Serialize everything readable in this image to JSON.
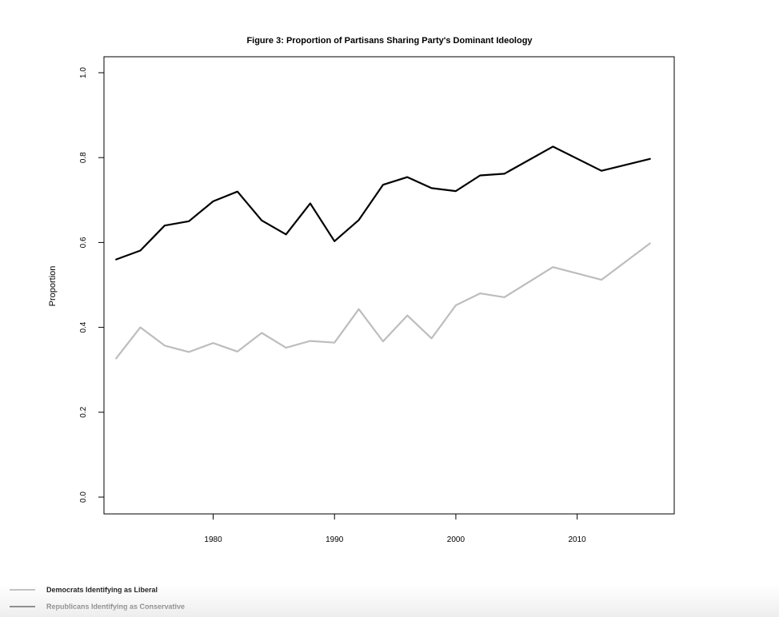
{
  "chart_data": {
    "type": "line",
    "title": "Figure 3: Proportion of Partisans Sharing Party's Dominant Ideology",
    "xlabel": "",
    "ylabel": "Proportion",
    "xlim": [
      1971,
      2018
    ],
    "ylim": [
      0.0,
      1.0
    ],
    "x_ticks": [
      1980,
      1990,
      2000,
      2010
    ],
    "x_tick_labels": [
      "1980",
      "1990",
      "2000",
      "2010"
    ],
    "y_ticks": [
      0.0,
      0.2,
      0.4,
      0.6,
      0.8,
      1.0
    ],
    "y_tick_labels": [
      "0.0",
      "0.2",
      "0.4",
      "0.6",
      "0.8",
      "1.0"
    ],
    "grid": false,
    "legend_position": "bottom-left",
    "x": [
      1972,
      1974,
      1976,
      1978,
      1980,
      1982,
      1984,
      1986,
      1988,
      1990,
      1992,
      1994,
      1996,
      1998,
      2000,
      2002,
      2004,
      2008,
      2012,
      2016
    ],
    "series": [
      {
        "name": "Democrats Identifying as Liberal",
        "color": "#bdbdbd",
        "values": [
          0.327,
          0.4,
          0.357,
          0.342,
          0.363,
          0.343,
          0.387,
          0.352,
          0.368,
          0.364,
          0.443,
          0.367,
          0.428,
          0.374,
          0.452,
          0.48,
          0.471,
          0.542,
          0.512,
          0.598
        ]
      },
      {
        "name": "Republicans Identifying as Conservative",
        "color": "#000000",
        "values": [
          0.56,
          0.581,
          0.64,
          0.65,
          0.697,
          0.72,
          0.652,
          0.619,
          0.692,
          0.603,
          0.653,
          0.736,
          0.754,
          0.728,
          0.721,
          0.758,
          0.762,
          0.826,
          0.769,
          0.797
        ]
      }
    ]
  }
}
